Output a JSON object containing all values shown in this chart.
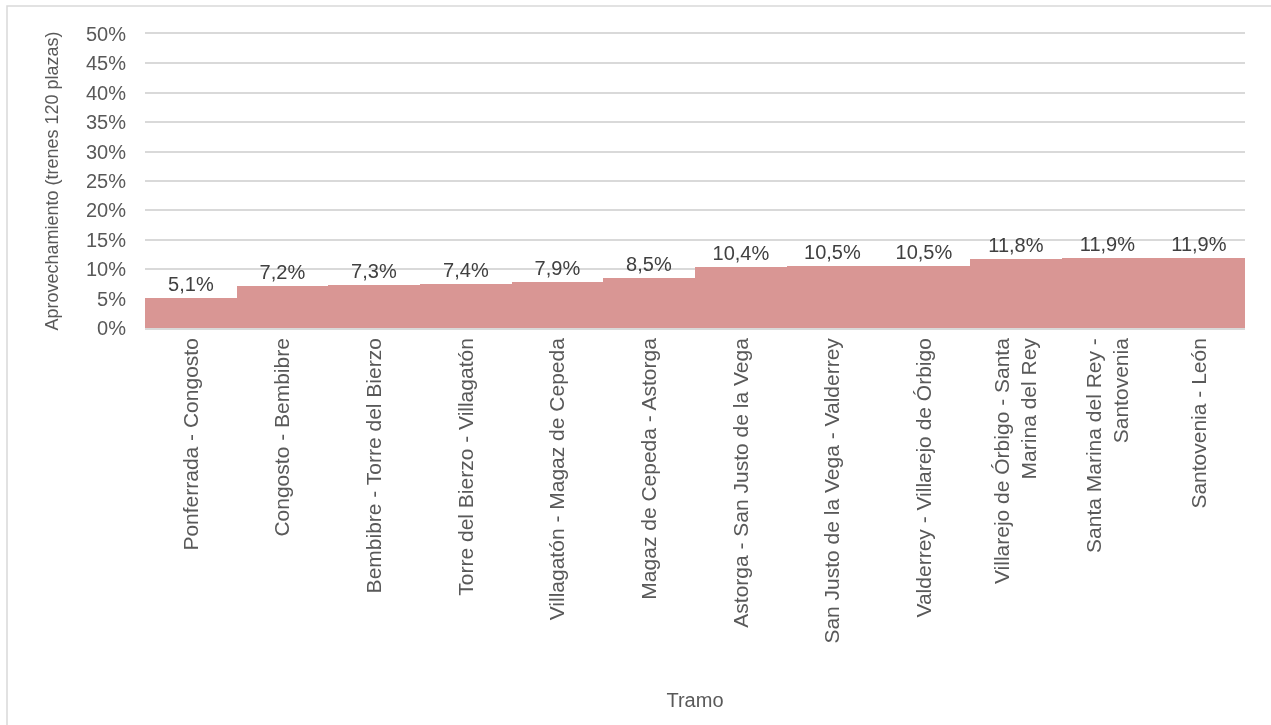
{
  "chart_data": {
    "type": "bar",
    "xlabel": "Tramo",
    "ylabel": "Aprovechamiento (trenes 120 plazas)",
    "categories": [
      "Ponferrada - Congosto",
      "Congosto - Bembibre",
      "Bembibre - Torre del Bierzo",
      "Torre del Bierzo - Villagatón",
      "Villagatón - Magaz de Cepeda",
      "Magaz de Cepeda - Astorga",
      "Astorga - San Justo de la Vega",
      "San Justo de la Vega - Valderrey",
      "Valderrey - Villarejo de Órbigo",
      "Villarejo de Órbigo - Santa Marina del Rey",
      "Santa Marina del Rey - Santovenia",
      "Santovenia - León"
    ],
    "values": [
      5.1,
      7.2,
      7.3,
      7.4,
      7.9,
      8.5,
      10.4,
      10.5,
      10.5,
      11.8,
      11.9,
      11.9
    ],
    "value_labels": [
      "5,1%",
      "7,2%",
      "7,3%",
      "7,4%",
      "7,9%",
      "8,5%",
      "10,4%",
      "10,5%",
      "10,5%",
      "11,8%",
      "11,9%",
      "11,9%"
    ],
    "color": "#d99694",
    "ylim": [
      0,
      50
    ],
    "yticks": [
      {
        "value": 0,
        "label": "0%"
      },
      {
        "value": 5,
        "label": "5%"
      },
      {
        "value": 10,
        "label": "10%"
      },
      {
        "value": 15,
        "label": "15%"
      },
      {
        "value": 20,
        "label": "20%"
      },
      {
        "value": 25,
        "label": "25%"
      },
      {
        "value": 30,
        "label": "30%"
      },
      {
        "value": 35,
        "label": "35%"
      },
      {
        "value": 40,
        "label": "40%"
      },
      {
        "value": 45,
        "label": "45%"
      },
      {
        "value": 50,
        "label": "50%"
      }
    ],
    "grid": "y"
  }
}
